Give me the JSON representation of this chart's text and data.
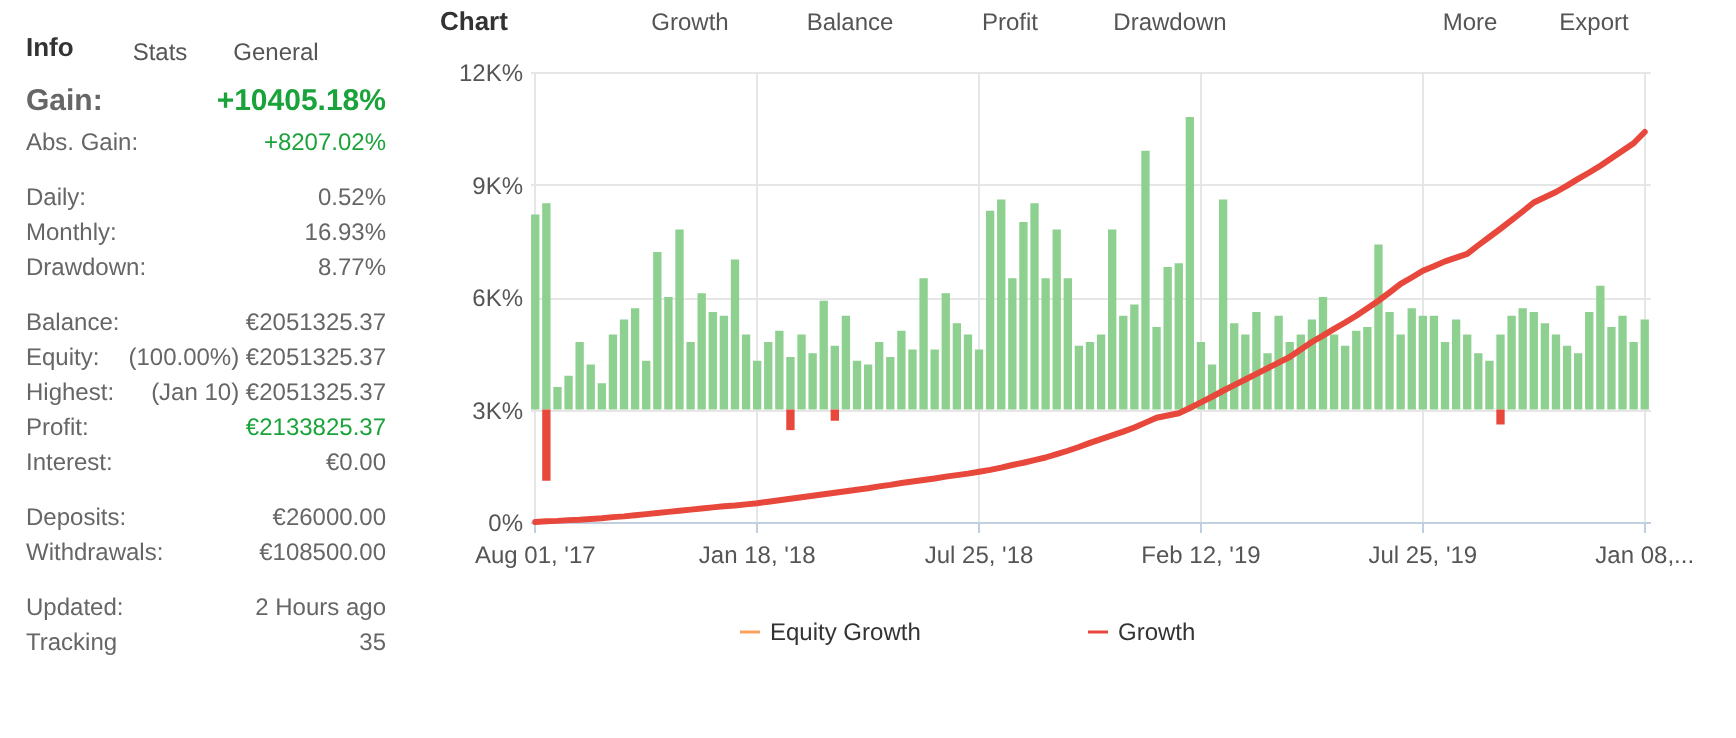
{
  "chart_data": [
    {
      "type": "other",
      "title": "Info",
      "annotations": [
        "Stats",
        "General",
        "Gain:",
        "+10405.18%",
        "Abs. Gain:",
        "+8207.02%",
        "Daily:",
        "0.52%",
        "Monthly:",
        "16.93%",
        "Drawdown:",
        "8.77%",
        "Balance:",
        "€2051325.37",
        "Equity:",
        "(100.00%) €2051325.37",
        "Highest:",
        "(Jan 10) €2051325.37",
        "Profit:",
        "€2133825.37",
        "Interest:",
        "€0.00",
        "Deposits:",
        "€26000.00",
        "Withdrawals:",
        "€108500.00",
        "Updated:",
        "2 Hours ago",
        "Tracking",
        "35"
      ]
    },
    {
      "type": "line",
      "title": "Chart",
      "annotations": [
        "Growth",
        "Balance",
        "Profit",
        "Drawdown",
        "More",
        "Export"
      ],
      "categories": [
        "Aug 01, '17",
        null,
        null,
        null,
        null,
        null,
        null,
        null,
        null,
        null,
        null,
        null,
        null,
        null,
        null,
        null,
        null,
        null,
        null,
        null,
        "Jan 18, '18",
        null,
        null,
        null,
        null,
        null,
        null,
        null,
        null,
        null,
        null,
        null,
        null,
        null,
        null,
        null,
        null,
        null,
        null,
        null,
        "Jul 25, '18",
        null,
        null,
        null,
        null,
        null,
        null,
        null,
        null,
        null,
        null,
        null,
        null,
        null,
        null,
        null,
        null,
        null,
        null,
        null,
        "Feb 12, '19",
        null,
        null,
        null,
        null,
        null,
        null,
        null,
        null,
        null,
        null,
        null,
        null,
        null,
        null,
        null,
        null,
        null,
        null,
        null,
        "Jul 25, '19",
        null,
        null,
        null,
        null,
        null,
        null,
        null,
        null,
        null,
        null,
        null,
        null,
        null,
        null,
        null,
        null,
        null,
        null,
        null,
        "Jan 08,..."
      ],
      "ylim": [
        0,
        12000
      ],
      "yticks": [
        {
          "value": 0,
          "label": "0%"
        },
        {
          "value": 3000,
          "label": "3K%"
        },
        {
          "value": 6000,
          "label": "6K%"
        },
        {
          "value": 9000,
          "label": "9K%"
        },
        {
          "value": 12000,
          "label": "12K%"
        }
      ],
      "grid": true,
      "legend": "bottom",
      "series": [
        {
          "type": "bar",
          "color": "#8dd08f",
          "base": [
            3000,
            3000,
            3000,
            3000,
            3000,
            3000,
            3000,
            3000,
            3000,
            3000,
            3000,
            3000,
            3000,
            3000,
            3000,
            3000,
            3000,
            3000,
            3000,
            3000,
            3000,
            3000,
            3000,
            3000,
            3000,
            3000,
            3000,
            3000,
            3000,
            3000,
            3000,
            3000,
            3000,
            3000,
            3000,
            3000,
            3000,
            3000,
            3000,
            3000,
            3000,
            3000,
            3000,
            3000,
            3000,
            3000,
            3000,
            3000,
            3000,
            3000,
            3000,
            3000,
            3000,
            3000,
            3000,
            3000,
            3000,
            3000,
            3000,
            3000,
            3000,
            3000,
            3000,
            3000,
            3000,
            3000,
            3000,
            3000,
            3000,
            3000,
            3000,
            3000,
            3000,
            3000,
            3000,
            3000,
            3000,
            3000,
            3000,
            3000,
            3000,
            3000,
            3000,
            3000,
            3000,
            3000,
            3000,
            3000,
            3000,
            3000,
            3000,
            3000,
            3000,
            3000,
            3000,
            3000,
            3000,
            3000,
            3000,
            3000,
            3000
          ],
          "values": [
            5200,
            5500,
            600,
            900,
            1800,
            1200,
            700,
            2000,
            2400,
            2700,
            1300,
            4200,
            3000,
            4800,
            1800,
            3100,
            2600,
            2500,
            4000,
            2000,
            1300,
            1800,
            2100,
            1400,
            2000,
            1500,
            2900,
            1700,
            2500,
            1300,
            1200,
            1800,
            1400,
            2100,
            1600,
            3500,
            1600,
            3100,
            2300,
            2000,
            1600,
            5300,
            5600,
            3500,
            5000,
            5500,
            3500,
            4800,
            3500,
            1700,
            1800,
            2000,
            4800,
            2500,
            2800,
            6900,
            2200,
            3800,
            3900,
            7800,
            1800,
            1200,
            5600,
            2300,
            2000,
            2600,
            1500,
            2500,
            1800,
            2000,
            2400,
            3000,
            2000,
            1700,
            2100,
            2200,
            4400,
            2600,
            2000,
            2700,
            2500,
            2500,
            1800,
            2400,
            2000,
            1500,
            1300,
            2000,
            2500,
            2700,
            2600,
            2300,
            2000,
            1700,
            1500,
            2600,
            3300,
            2200,
            2500,
            1800,
            2400
          ]
        },
        {
          "type": "bar",
          "color": "#e8473b",
          "base": [
            null,
            3000,
            null,
            null,
            null,
            null,
            null,
            null,
            null,
            null,
            null,
            null,
            null,
            null,
            null,
            null,
            null,
            null,
            null,
            null,
            null,
            null,
            null,
            3000,
            null,
            null,
            null,
            3000,
            null,
            null,
            null,
            null,
            null,
            null,
            null,
            null,
            null,
            null,
            null,
            null,
            null,
            null,
            null,
            null,
            null,
            null,
            null,
            null,
            null,
            null,
            null,
            null,
            null,
            null,
            null,
            null,
            null,
            null,
            null,
            null,
            null,
            null,
            null,
            null,
            null,
            null,
            null,
            null,
            null,
            null,
            null,
            null,
            null,
            null,
            null,
            null,
            null,
            null,
            null,
            null,
            null,
            null,
            null,
            null,
            null,
            null,
            null,
            3000,
            null,
            null,
            null,
            null,
            null,
            null,
            null,
            null,
            null,
            null,
            null,
            null,
            null
          ],
          "values": [
            null,
            -1900,
            null,
            null,
            null,
            null,
            null,
            null,
            null,
            null,
            null,
            null,
            null,
            null,
            null,
            null,
            null,
            null,
            null,
            null,
            null,
            null,
            null,
            -550,
            null,
            null,
            null,
            -300,
            null,
            null,
            null,
            null,
            null,
            null,
            null,
            null,
            null,
            null,
            null,
            null,
            null,
            null,
            null,
            null,
            null,
            null,
            null,
            null,
            null,
            null,
            null,
            null,
            null,
            null,
            null,
            null,
            null,
            null,
            null,
            null,
            null,
            null,
            null,
            null,
            null,
            null,
            null,
            null,
            null,
            null,
            null,
            null,
            null,
            null,
            null,
            null,
            null,
            null,
            null,
            null,
            null,
            null,
            null,
            null,
            null,
            null,
            null,
            -400,
            null,
            null,
            null,
            null,
            null,
            null,
            null,
            null,
            null,
            null,
            null,
            null,
            null
          ]
        },
        {
          "name": "Equity Growth",
          "color": "#f7a35c",
          "values": [
            null,
            null,
            null,
            null,
            null,
            null,
            null,
            null,
            null,
            null,
            null,
            null,
            null,
            null,
            null,
            null,
            null,
            null,
            null,
            null,
            null,
            null,
            null,
            null,
            null,
            null,
            null,
            null,
            null,
            null,
            null,
            null,
            null,
            null,
            null,
            null,
            null,
            null,
            null,
            null,
            null,
            null,
            null,
            null,
            null,
            null,
            null,
            null,
            null,
            null,
            null,
            null,
            null,
            null,
            null,
            null,
            null,
            null,
            null,
            null,
            null,
            null,
            null,
            null,
            null,
            null,
            null,
            null,
            null,
            null,
            null,
            null,
            null,
            null,
            null,
            null,
            null,
            null,
            null,
            null,
            null,
            null,
            null,
            null,
            null,
            null,
            null,
            null,
            null,
            null,
            null,
            null,
            null,
            null,
            null,
            null,
            null,
            null,
            null,
            null,
            null
          ]
        },
        {
          "name": "Growth",
          "color": "#e8473b",
          "values": [
            0,
            20,
            30,
            50,
            60,
            80,
            100,
            130,
            150,
            180,
            210,
            240,
            270,
            300,
            330,
            360,
            390,
            420,
            440,
            470,
            500,
            540,
            580,
            620,
            660,
            700,
            740,
            780,
            820,
            860,
            900,
            950,
            990,
            1040,
            1080,
            1120,
            1160,
            1210,
            1250,
            1290,
            1340,
            1390,
            1450,
            1520,
            1580,
            1650,
            1720,
            1810,
            1900,
            2000,
            2110,
            2210,
            2310,
            2410,
            2520,
            2650,
            2780,
            2840,
            2900,
            3040,
            3190,
            3340,
            3500,
            3650,
            3800,
            3950,
            4100,
            4250,
            4400,
            4600,
            4800,
            4970,
            5150,
            5320,
            5500,
            5700,
            5900,
            6120,
            6350,
            6520,
            6700,
            6820,
            6950,
            7050,
            7150,
            7380,
            7600,
            7820,
            8050,
            8280,
            8520,
            8660,
            8800,
            8970,
            9150,
            9320,
            9500,
            9700,
            9900,
            10100,
            10400
          ]
        }
      ]
    }
  ]
}
